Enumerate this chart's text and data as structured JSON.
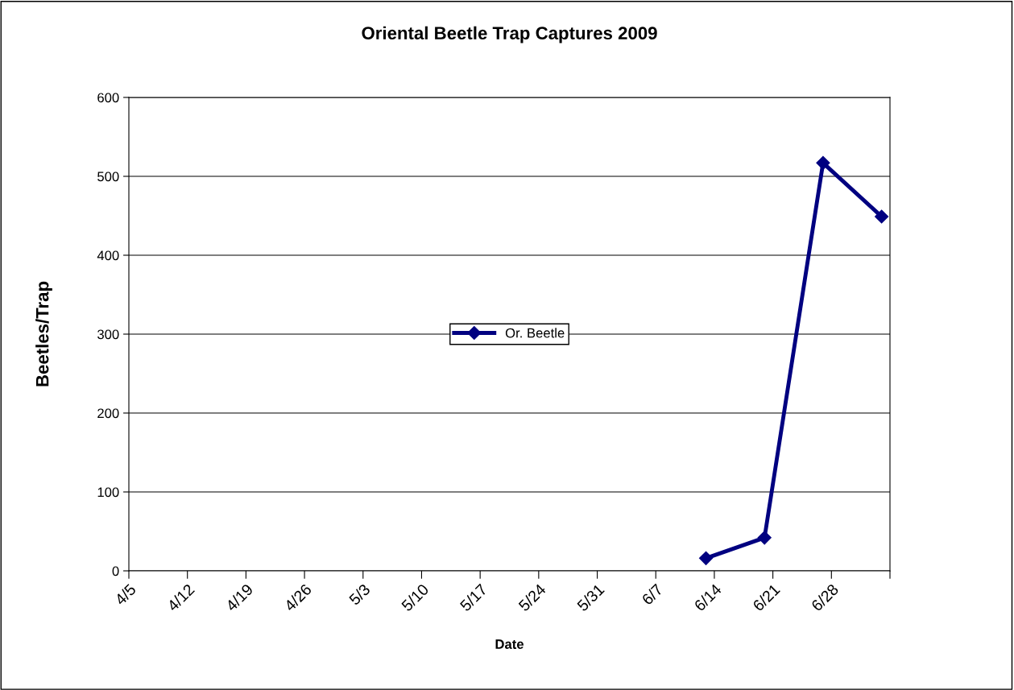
{
  "chart_data": {
    "type": "line",
    "title": "Oriental Beetle Trap Captures 2009",
    "xlabel": "Date",
    "ylabel": "Beetles/Trap",
    "x": [
      "2009-06-13",
      "2009-06-20",
      "2009-06-27",
      "2009-07-04"
    ],
    "series": [
      {
        "name": "Or. Beetle",
        "color": "#000080",
        "values": [
          16,
          42,
          517,
          449
        ]
      }
    ],
    "xlim": [
      "2009-04-05",
      "2009-07-05"
    ],
    "xticks": [
      {
        "value": "2009-04-05",
        "label": "4/5"
      },
      {
        "value": "2009-04-12",
        "label": "4/12"
      },
      {
        "value": "2009-04-19",
        "label": "4/19"
      },
      {
        "value": "2009-04-26",
        "label": "4/26"
      },
      {
        "value": "2009-05-03",
        "label": "5/3"
      },
      {
        "value": "2009-05-10",
        "label": "5/10"
      },
      {
        "value": "2009-05-17",
        "label": "5/17"
      },
      {
        "value": "2009-05-24",
        "label": "5/24"
      },
      {
        "value": "2009-05-31",
        "label": "5/31"
      },
      {
        "value": "2009-06-07",
        "label": "6/7"
      },
      {
        "value": "2009-06-14",
        "label": "6/14"
      },
      {
        "value": "2009-06-21",
        "label": "6/21"
      },
      {
        "value": "2009-06-28",
        "label": "6/28"
      },
      {
        "value": "2009-07-05",
        "label": null
      }
    ],
    "ylim": [
      0,
      600
    ],
    "yticks": [
      0,
      100,
      200,
      300,
      400,
      500,
      600
    ],
    "grid": "y",
    "legend": "center",
    "marker": "diamond",
    "line_style": "solid"
  }
}
